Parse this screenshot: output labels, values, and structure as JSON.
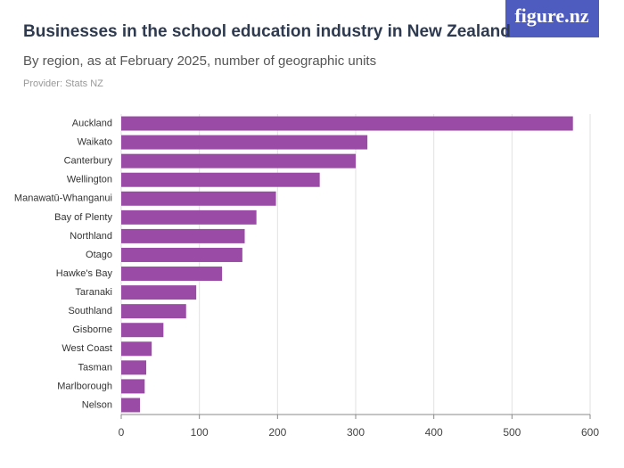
{
  "logo": "figure.nz",
  "chart_data": {
    "type": "bar",
    "orientation": "horizontal",
    "title": "Businesses in the school education industry in New Zealand",
    "subtitle": "By region, as at February 2025, number of geographic units",
    "source": "Provider: Stats NZ",
    "categories": [
      "Auckland",
      "Waikato",
      "Canterbury",
      "Wellington",
      "Manawatū-Whanganui",
      "Bay of Plenty",
      "Northland",
      "Otago",
      "Hawke's Bay",
      "Taranaki",
      "Southland",
      "Gisborne",
      "West Coast",
      "Tasman",
      "Marlborough",
      "Nelson"
    ],
    "values": [
      578,
      315,
      300,
      254,
      198,
      173,
      158,
      155,
      129,
      96,
      83,
      54,
      39,
      32,
      30,
      24
    ],
    "color": "#9a4ba6",
    "xlim": [
      0,
      600
    ],
    "xticks": [
      0,
      100,
      200,
      300,
      400,
      500,
      600
    ],
    "grid": true
  }
}
